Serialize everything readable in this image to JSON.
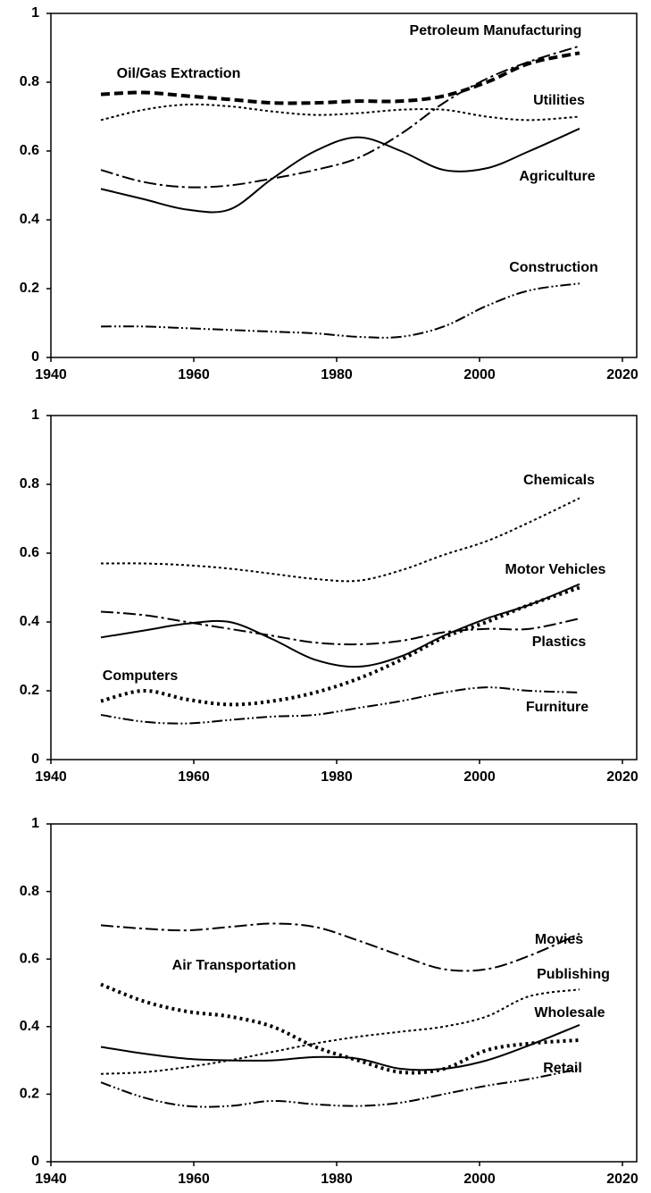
{
  "chart_data": [
    {
      "type": "line",
      "x": [
        1947,
        1953,
        1959,
        1965,
        1971,
        1977,
        1983,
        1989,
        1995,
        2001,
        2007,
        2014
      ],
      "xlim": [
        1940,
        2022
      ],
      "xticks": [
        1940,
        1960,
        1980,
        2000,
        2020
      ],
      "ylim": [
        0,
        1
      ],
      "yticks": [
        0,
        0.2,
        0.4,
        0.6,
        0.8,
        1
      ],
      "series": [
        {
          "name": "Petroleum Manufacturing",
          "color": "#000000",
          "values": [
            0.545,
            0.51,
            0.495,
            0.5,
            0.52,
            0.545,
            0.58,
            0.65,
            0.74,
            0.81,
            0.86,
            0.905
          ]
        },
        {
          "name": "Oil/Gas Extraction",
          "color": "#000000",
          "values": [
            0.765,
            0.77,
            0.76,
            0.75,
            0.74,
            0.74,
            0.745,
            0.745,
            0.76,
            0.8,
            0.855,
            0.885
          ]
        },
        {
          "name": "Utilities",
          "color": "#000000",
          "values": [
            0.69,
            0.72,
            0.735,
            0.73,
            0.715,
            0.705,
            0.71,
            0.72,
            0.72,
            0.7,
            0.69,
            0.7
          ]
        },
        {
          "name": "Agriculture",
          "color": "#000000",
          "values": [
            0.49,
            0.46,
            0.43,
            0.43,
            0.52,
            0.6,
            0.64,
            0.6,
            0.545,
            0.55,
            0.6,
            0.665
          ]
        },
        {
          "name": "Construction",
          "color": "#000000",
          "values": [
            0.09,
            0.09,
            0.085,
            0.08,
            0.075,
            0.07,
            0.06,
            0.06,
            0.09,
            0.15,
            0.195,
            0.215
          ]
        }
      ]
    },
    {
      "type": "line",
      "x": [
        1947,
        1953,
        1959,
        1965,
        1971,
        1977,
        1983,
        1989,
        1995,
        2001,
        2007,
        2014
      ],
      "xlim": [
        1940,
        2022
      ],
      "xticks": [
        1940,
        1960,
        1980,
        2000,
        2020
      ],
      "ylim": [
        0,
        1
      ],
      "yticks": [
        0,
        0.2,
        0.4,
        0.6,
        0.8,
        1
      ],
      "series": [
        {
          "name": "Chemicals",
          "color": "#000000",
          "values": [
            0.57,
            0.57,
            0.565,
            0.555,
            0.54,
            0.525,
            0.52,
            0.55,
            0.595,
            0.635,
            0.69,
            0.76
          ]
        },
        {
          "name": "Motor Vehicles",
          "color": "#000000",
          "values": [
            0.355,
            0.375,
            0.395,
            0.4,
            0.35,
            0.29,
            0.27,
            0.3,
            0.36,
            0.41,
            0.45,
            0.51
          ]
        },
        {
          "name": "Plastics",
          "color": "#000000",
          "values": [
            0.43,
            0.42,
            0.4,
            0.38,
            0.36,
            0.34,
            0.335,
            0.345,
            0.37,
            0.38,
            0.38,
            0.41
          ]
        },
        {
          "name": "Computers",
          "color": "#000000",
          "values": [
            0.17,
            0.2,
            0.175,
            0.16,
            0.17,
            0.195,
            0.235,
            0.29,
            0.355,
            0.4,
            0.45,
            0.5
          ]
        },
        {
          "name": "Furniture",
          "color": "#000000",
          "values": [
            0.13,
            0.11,
            0.105,
            0.115,
            0.125,
            0.13,
            0.15,
            0.17,
            0.195,
            0.21,
            0.2,
            0.195
          ]
        }
      ]
    },
    {
      "type": "line",
      "x": [
        1947,
        1953,
        1959,
        1965,
        1971,
        1977,
        1983,
        1989,
        1995,
        2001,
        2007,
        2014
      ],
      "xlim": [
        1940,
        2022
      ],
      "xticks": [
        1940,
        1960,
        1980,
        2000,
        2020
      ],
      "ylim": [
        0,
        1
      ],
      "yticks": [
        0,
        0.2,
        0.4,
        0.6,
        0.8,
        1
      ],
      "series": [
        {
          "name": "Movies",
          "color": "#000000",
          "values": [
            0.7,
            0.69,
            0.685,
            0.695,
            0.705,
            0.695,
            0.655,
            0.61,
            0.57,
            0.57,
            0.61,
            0.675
          ]
        },
        {
          "name": "Publishing",
          "color": "#000000",
          "values": [
            0.26,
            0.265,
            0.28,
            0.3,
            0.325,
            0.35,
            0.37,
            0.385,
            0.4,
            0.43,
            0.49,
            0.51
          ]
        },
        {
          "name": "Wholesale",
          "color": "#000000",
          "values": [
            0.34,
            0.32,
            0.305,
            0.3,
            0.3,
            0.31,
            0.305,
            0.275,
            0.275,
            0.3,
            0.345,
            0.405
          ]
        },
        {
          "name": "Air Transportation",
          "color": "#000000",
          "values": [
            0.525,
            0.475,
            0.445,
            0.43,
            0.4,
            0.34,
            0.3,
            0.265,
            0.275,
            0.33,
            0.35,
            0.36
          ]
        },
        {
          "name": "Retail",
          "color": "#000000",
          "values": [
            0.235,
            0.19,
            0.165,
            0.165,
            0.18,
            0.17,
            0.165,
            0.175,
            0.2,
            0.225,
            0.245,
            0.275
          ]
        }
      ]
    }
  ]
}
